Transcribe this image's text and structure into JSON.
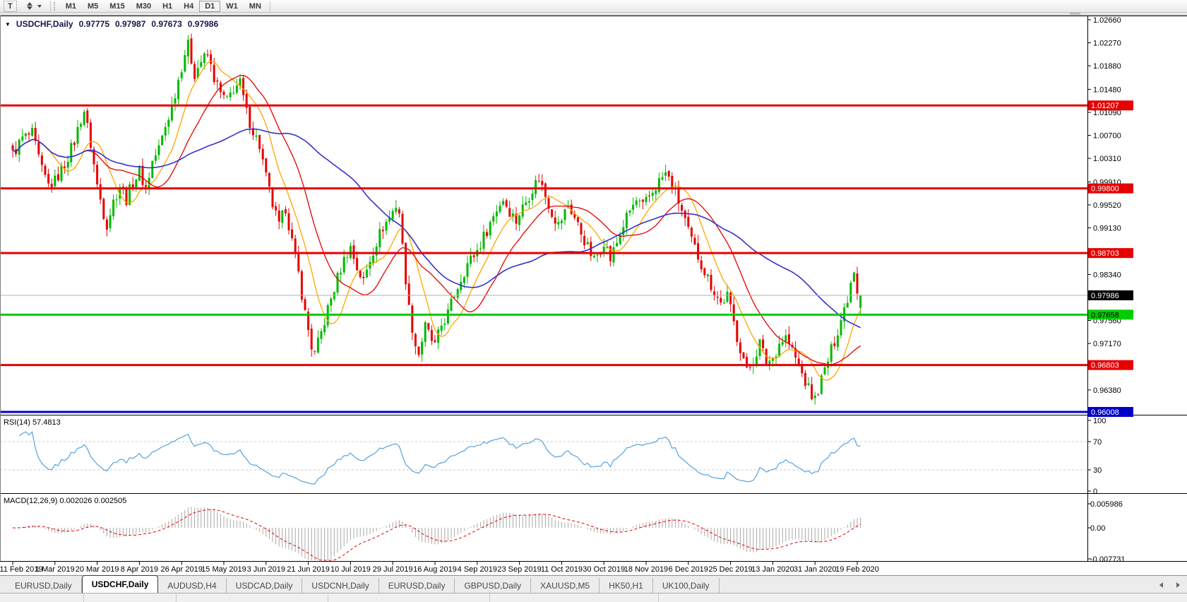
{
  "toolbar": {
    "text_tool_label": "T",
    "timeframes": [
      "M1",
      "M5",
      "M15",
      "M30",
      "H1",
      "H4",
      "D1",
      "W1",
      "MN"
    ],
    "active_timeframe": "D1"
  },
  "chart_header": {
    "collapse_arrow": "▼",
    "symbol": "USDCHF,Daily",
    "open": "0.97775",
    "high": "0.97987",
    "low": "0.97673",
    "close": "0.97986"
  },
  "rsi_pane": {
    "label": "RSI(14) 57.4813",
    "levels": [
      "100",
      "70",
      "30",
      "0"
    ]
  },
  "macd_pane": {
    "label": "MACD(12,26,9) 0.002026 0.002505",
    "axis_labels": [
      "0.005986",
      "0.00",
      "-0.007731"
    ]
  },
  "tabs": {
    "items": [
      "EURUSD,Daily",
      "USDCHF,Daily",
      "AUDUSD,H4",
      "USDCAD,Daily",
      "USDCNH,Daily",
      "EURUSD,Daily",
      "GBPUSD,Daily",
      "XAUUSD,M5",
      "HK50,H1",
      "UK100,Daily"
    ],
    "active": "USDCHF,Daily"
  },
  "colors": {
    "bull": "#00b800",
    "bear": "#e60000",
    "ma_fast": "#ffa500",
    "ma_mid": "#e60000",
    "ma_slow": "#3333cc",
    "rsi": "#56a2dc",
    "macd_hist": "#a8a8a8",
    "macd_signal": "#e60000",
    "line_red": "#e60000",
    "line_green": "#00cc00",
    "line_blue": "#0000c8",
    "badge_black": "#000000"
  },
  "chart_data": {
    "type": "candlestick",
    "symbol": "USDCHF",
    "timeframe": "Daily",
    "current_ohlc": {
      "open": 0.97775,
      "high": 0.97987,
      "low": 0.97673,
      "close": 0.97986
    },
    "bars_count": 262,
    "x_label_step_bars": 13,
    "y_axis_ticks": [
      "1.02660",
      "1.02270",
      "1.01880",
      "1.01480",
      "1.01090",
      "1.00700",
      "1.00310",
      "0.99910",
      "0.99520",
      "0.99130",
      "0.98340",
      "0.97560",
      "0.97170",
      "0.96380"
    ],
    "x_axis_labels": [
      "11 Feb 2019",
      "1 Mar 2019",
      "20 Mar 2019",
      "8 Apr 2019",
      "26 Apr 2019",
      "15 May 2019",
      "3 Jun 2019",
      "21 Jun 2019",
      "10 Jul 2019",
      "29 Jul 2019",
      "16 Aug 2019",
      "4 Sep 2019",
      "23 Sep 2019",
      "11 Oct 2019",
      "30 Oct 2019",
      "18 Nov 2019",
      "6 Dec 2019",
      "25 Dec 2019",
      "13 Jan 2020",
      "31 Jan 2020",
      "19 Feb 2020"
    ],
    "horizontal_lines": [
      {
        "label": "1.01207",
        "price": 1.01207,
        "color": "red",
        "type": "resistance"
      },
      {
        "label": "0.99800",
        "price": 0.998,
        "color": "red",
        "type": "resistance"
      },
      {
        "label": "0.98703",
        "price": 0.98703,
        "color": "red",
        "type": "resistance"
      },
      {
        "label": "0.97986",
        "price": 0.97986,
        "color": "black",
        "type": "current-price"
      },
      {
        "label": "0.97658",
        "price": 0.97658,
        "color": "green",
        "type": "support"
      },
      {
        "label": "0.96803",
        "price": 0.96803,
        "color": "red",
        "type": "support"
      },
      {
        "label": "0.96008",
        "price": 0.96008,
        "color": "blue",
        "type": "support"
      }
    ],
    "price_path_anchors": [
      [
        0,
        1.0038
      ],
      [
        3,
        1.0065
      ],
      [
        6,
        1.0072
      ],
      [
        9,
        1.001
      ],
      [
        11,
        0.9985
      ],
      [
        13,
        0.9992
      ],
      [
        16,
        1.0022
      ],
      [
        19,
        1.006
      ],
      [
        21,
        1.0098
      ],
      [
        22,
        1.0112
      ],
      [
        24,
        1.0055
      ],
      [
        26,
        0.9985
      ],
      [
        28,
        0.9938
      ],
      [
        29,
        0.992
      ],
      [
        31,
        0.9958
      ],
      [
        33,
        0.9985
      ],
      [
        35,
        0.9962
      ],
      [
        37,
        0.999
      ],
      [
        39,
        1.0008
      ],
      [
        41,
        0.998
      ],
      [
        43,
        1.0025
      ],
      [
        45,
        1.0048
      ],
      [
        47,
        1.0085
      ],
      [
        49,
        1.012
      ],
      [
        51,
        1.0165
      ],
      [
        53,
        1.021
      ],
      [
        54,
        1.0222
      ],
      [
        56,
        1.0175
      ],
      [
        58,
        1.0196
      ],
      [
        60,
        1.0205
      ],
      [
        62,
        1.0168
      ],
      [
        64,
        1.014
      ],
      [
        66,
        1.0128
      ],
      [
        68,
        1.015
      ],
      [
        70,
        1.0158
      ],
      [
        72,
        1.0108
      ],
      [
        74,
        1.0078
      ],
      [
        76,
        1.0052
      ],
      [
        78,
        0.9998
      ],
      [
        80,
        0.9952
      ],
      [
        82,
        0.9915
      ],
      [
        84,
        0.9948
      ],
      [
        86,
        0.989
      ],
      [
        88,
        0.9835
      ],
      [
        90,
        0.9768
      ],
      [
        92,
        0.9712
      ],
      [
        93,
        0.9698
      ],
      [
        95,
        0.9735
      ],
      [
        97,
        0.9775
      ],
      [
        99,
        0.981
      ],
      [
        101,
        0.9845
      ],
      [
        103,
        0.9872
      ],
      [
        104,
        0.988
      ],
      [
        106,
        0.9845
      ],
      [
        108,
        0.9822
      ],
      [
        110,
        0.986
      ],
      [
        112,
        0.989
      ],
      [
        114,
        0.9915
      ],
      [
        116,
        0.993
      ],
      [
        118,
        0.9952
      ],
      [
        119,
        0.994
      ],
      [
        120,
        0.988
      ],
      [
        122,
        0.9775
      ],
      [
        124,
        0.9715
      ],
      [
        125,
        0.97
      ],
      [
        127,
        0.9745
      ],
      [
        129,
        0.9722
      ],
      [
        130,
        0.9712
      ],
      [
        132,
        0.9748
      ],
      [
        134,
        0.9768
      ],
      [
        136,
        0.98
      ],
      [
        138,
        0.9828
      ],
      [
        140,
        0.9852
      ],
      [
        143,
        0.9875
      ],
      [
        145,
        0.9898
      ],
      [
        147,
        0.9922
      ],
      [
        149,
        0.9945
      ],
      [
        151,
        0.9962
      ],
      [
        153,
        0.9942
      ],
      [
        155,
        0.9925
      ],
      [
        156,
        0.9938
      ],
      [
        158,
        0.9958
      ],
      [
        160,
        0.998
      ],
      [
        162,
        0.9998
      ],
      [
        164,
        0.9968
      ],
      [
        166,
        0.994
      ],
      [
        168,
        0.9918
      ],
      [
        169,
        0.9928
      ],
      [
        171,
        0.9952
      ],
      [
        173,
        0.993
      ],
      [
        175,
        0.9905
      ],
      [
        177,
        0.988
      ],
      [
        179,
        0.9858
      ],
      [
        181,
        0.9878
      ],
      [
        182,
        0.9892
      ],
      [
        184,
        0.986
      ],
      [
        186,
        0.9888
      ],
      [
        188,
        0.9918
      ],
      [
        190,
        0.9942
      ],
      [
        192,
        0.9958
      ],
      [
        194,
        0.9948
      ],
      [
        197,
        0.9975
      ],
      [
        199,
        0.9992
      ],
      [
        201,
        1.0005
      ],
      [
        203,
        0.9985
      ],
      [
        205,
        0.9958
      ],
      [
        207,
        0.9925
      ],
      [
        208,
        0.9905
      ],
      [
        210,
        0.9878
      ],
      [
        212,
        0.9852
      ],
      [
        214,
        0.9828
      ],
      [
        216,
        0.9805
      ],
      [
        218,
        0.9785
      ],
      [
        220,
        0.9798
      ],
      [
        221,
        0.9775
      ],
      [
        223,
        0.9728
      ],
      [
        225,
        0.9692
      ],
      [
        226,
        0.9668
      ],
      [
        228,
        0.9688
      ],
      [
        230,
        0.9718
      ],
      [
        232,
        0.9685
      ],
      [
        234,
        0.9692
      ],
      [
        236,
        0.9718
      ],
      [
        238,
        0.9728
      ],
      [
        240,
        0.9705
      ],
      [
        242,
        0.9678
      ],
      [
        244,
        0.9652
      ],
      [
        246,
        0.9628
      ],
      [
        247,
        0.9622
      ],
      [
        249,
        0.9655
      ],
      [
        251,
        0.9688
      ],
      [
        253,
        0.9722
      ],
      [
        255,
        0.9758
      ],
      [
        257,
        0.9795
      ],
      [
        258,
        0.9822
      ],
      [
        259,
        0.9845
      ],
      [
        260,
        0.9808
      ],
      [
        261,
        0.97986
      ]
    ],
    "indicators": {
      "moving_averages": [
        {
          "period": 10,
          "color_key": "ma_fast"
        },
        {
          "period": 21,
          "color_key": "ma_mid"
        },
        {
          "period": 55,
          "color_key": "ma_slow"
        }
      ],
      "rsi": {
        "period": 14,
        "current": 57.4813,
        "levels": [
          100,
          70,
          30,
          0
        ]
      },
      "macd": {
        "fast": 12,
        "slow": 26,
        "signal": 9,
        "current_macd": 0.002026,
        "current_signal": 0.002505,
        "axis_values": [
          0.005986,
          0.0,
          -0.007731
        ]
      }
    }
  }
}
